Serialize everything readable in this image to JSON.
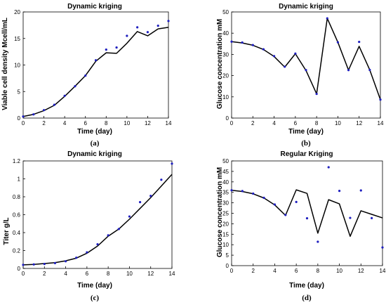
{
  "colors": {
    "model_line": "#000000",
    "observed_points": "#1f1fbf",
    "axis": "#000000"
  },
  "chart_data": [
    {
      "type": "line",
      "panel_label": "(a)",
      "title": "Dynamic kriging",
      "xlabel": "Time (day)",
      "ylabel": "Viable cell density Mcell/mL",
      "xlim": [
        0,
        14
      ],
      "ylim": [
        0,
        20
      ],
      "xticks": [
        0,
        2,
        4,
        6,
        8,
        10,
        12,
        14
      ],
      "yticks": [
        0,
        5,
        10,
        15,
        20
      ],
      "x": [
        0,
        1,
        2,
        3,
        4,
        5,
        6,
        7,
        8,
        9,
        10,
        11,
        12,
        13,
        14
      ],
      "series": [
        {
          "style": "line",
          "values": [
            0.3,
            0.7,
            1.4,
            2.4,
            4.1,
            6.0,
            8.0,
            10.7,
            12.3,
            12.2,
            14.1,
            16.3,
            15.5,
            16.8,
            17.1
          ]
        },
        {
          "style": "points",
          "values": [
            0.3,
            0.7,
            1.5,
            2.5,
            4.2,
            6.0,
            8.0,
            10.9,
            12.9,
            13.3,
            15.5,
            17.1,
            16.2,
            17.4,
            18.3
          ]
        }
      ]
    },
    {
      "type": "line",
      "panel_label": "(b)",
      "title": "Dynamic kriging",
      "xlabel": "Time (day)",
      "ylabel": "Glucose concentration mM",
      "xlim": [
        0,
        14
      ],
      "ylim": [
        0,
        50
      ],
      "xticks": [
        0,
        2,
        4,
        6,
        8,
        10,
        12,
        14
      ],
      "yticks": [
        0,
        10,
        20,
        30,
        40,
        50
      ],
      "x": [
        0,
        1,
        2,
        3,
        4,
        5,
        6,
        7,
        8,
        9,
        10,
        11,
        12,
        13,
        14
      ],
      "series": [
        {
          "style": "line",
          "values": [
            36.0,
            35.4,
            34.3,
            32.3,
            29.0,
            24.0,
            30.3,
            22.4,
            11.4,
            47.0,
            35.7,
            22.6,
            33.8,
            22.7,
            8.7
          ]
        },
        {
          "style": "points",
          "values": [
            36.0,
            35.6,
            34.4,
            32.4,
            29.2,
            24.2,
            30.4,
            22.6,
            11.4,
            47.0,
            35.7,
            22.6,
            35.9,
            22.7,
            8.7
          ]
        }
      ]
    },
    {
      "type": "line",
      "panel_label": "(c)",
      "title": "Dynamic kriging",
      "xlabel": "Time (day)",
      "ylabel": "Titer g/L",
      "xlim": [
        0,
        14
      ],
      "ylim": [
        0,
        1.2
      ],
      "xticks": [
        0,
        2,
        4,
        6,
        8,
        10,
        12,
        14
      ],
      "yticks": [
        0,
        0.2,
        0.4,
        0.6,
        0.8,
        1,
        1.2
      ],
      "x": [
        0,
        1,
        2,
        3,
        4,
        5,
        6,
        7,
        8,
        9,
        10,
        11,
        12,
        13,
        14
      ],
      "series": [
        {
          "style": "line",
          "values": [
            0.04,
            0.045,
            0.055,
            0.065,
            0.085,
            0.115,
            0.17,
            0.25,
            0.36,
            0.44,
            0.55,
            0.67,
            0.79,
            0.92,
            1.05
          ]
        },
        {
          "style": "points",
          "values": [
            0.04,
            0.045,
            0.05,
            0.06,
            0.08,
            0.12,
            0.18,
            0.27,
            0.37,
            0.44,
            0.58,
            0.74,
            0.81,
            0.99,
            1.17
          ]
        }
      ]
    },
    {
      "type": "line",
      "panel_label": "(d)",
      "title": "Regular Kriging",
      "xlabel": "Time (day)",
      "ylabel": "Glucose concentration mM",
      "xlim": [
        0,
        14
      ],
      "ylim": [
        0,
        50
      ],
      "xticks": [
        0,
        2,
        4,
        6,
        8,
        10,
        12,
        14
      ],
      "yticks": [
        0,
        5,
        10,
        15,
        20,
        25,
        30,
        35,
        40,
        45,
        50
      ],
      "x": [
        0,
        1,
        2,
        3,
        4,
        5,
        6,
        7,
        8,
        9,
        10,
        11,
        12,
        13,
        14
      ],
      "series": [
        {
          "style": "line",
          "values": [
            36.0,
            35.4,
            34.3,
            32.3,
            29.0,
            24.0,
            36.2,
            34.5,
            15.5,
            31.5,
            29.5,
            14.0,
            26.2,
            24.5,
            22.8
          ]
        },
        {
          "style": "points",
          "values": [
            36.0,
            35.6,
            34.4,
            32.4,
            29.2,
            24.2,
            30.4,
            22.6,
            11.4,
            47.0,
            35.7,
            22.8,
            35.9,
            22.7,
            8.7
          ]
        }
      ]
    }
  ]
}
